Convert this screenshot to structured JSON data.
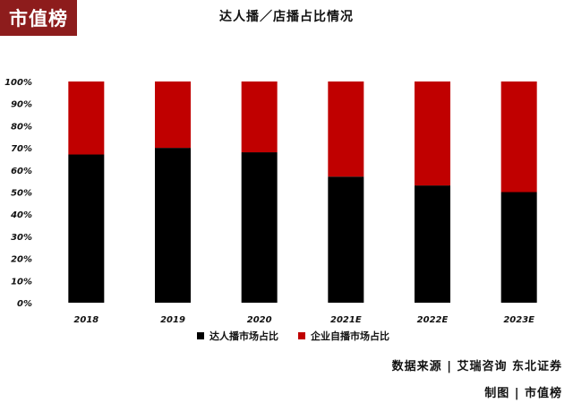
{
  "logo": {
    "text": "市值榜"
  },
  "chart_data": {
    "type": "bar",
    "stacked": true,
    "title": "达人播／店播占比情况",
    "categories": [
      "2018",
      "2019",
      "2020",
      "2021E",
      "2022E",
      "2023E"
    ],
    "series": [
      {
        "name": "达人播市场占比",
        "color": "#000000",
        "values": [
          67,
          70,
          68,
          57,
          53,
          50
        ]
      },
      {
        "name": "企业自播市场占比",
        "color": "#c00000",
        "values": [
          33,
          30,
          32,
          43,
          47,
          50
        ]
      }
    ],
    "ylim": [
      0,
      100
    ],
    "yticks": [
      "0%",
      "10%",
      "20%",
      "30%",
      "40%",
      "50%",
      "60%",
      "70%",
      "80%",
      "90%",
      "100%"
    ],
    "grid": false,
    "legend_position": "bottom"
  },
  "footer": {
    "source": "数据来源 | 艾瑞咨询 东北证券",
    "credit": "制图 | 市值榜"
  }
}
